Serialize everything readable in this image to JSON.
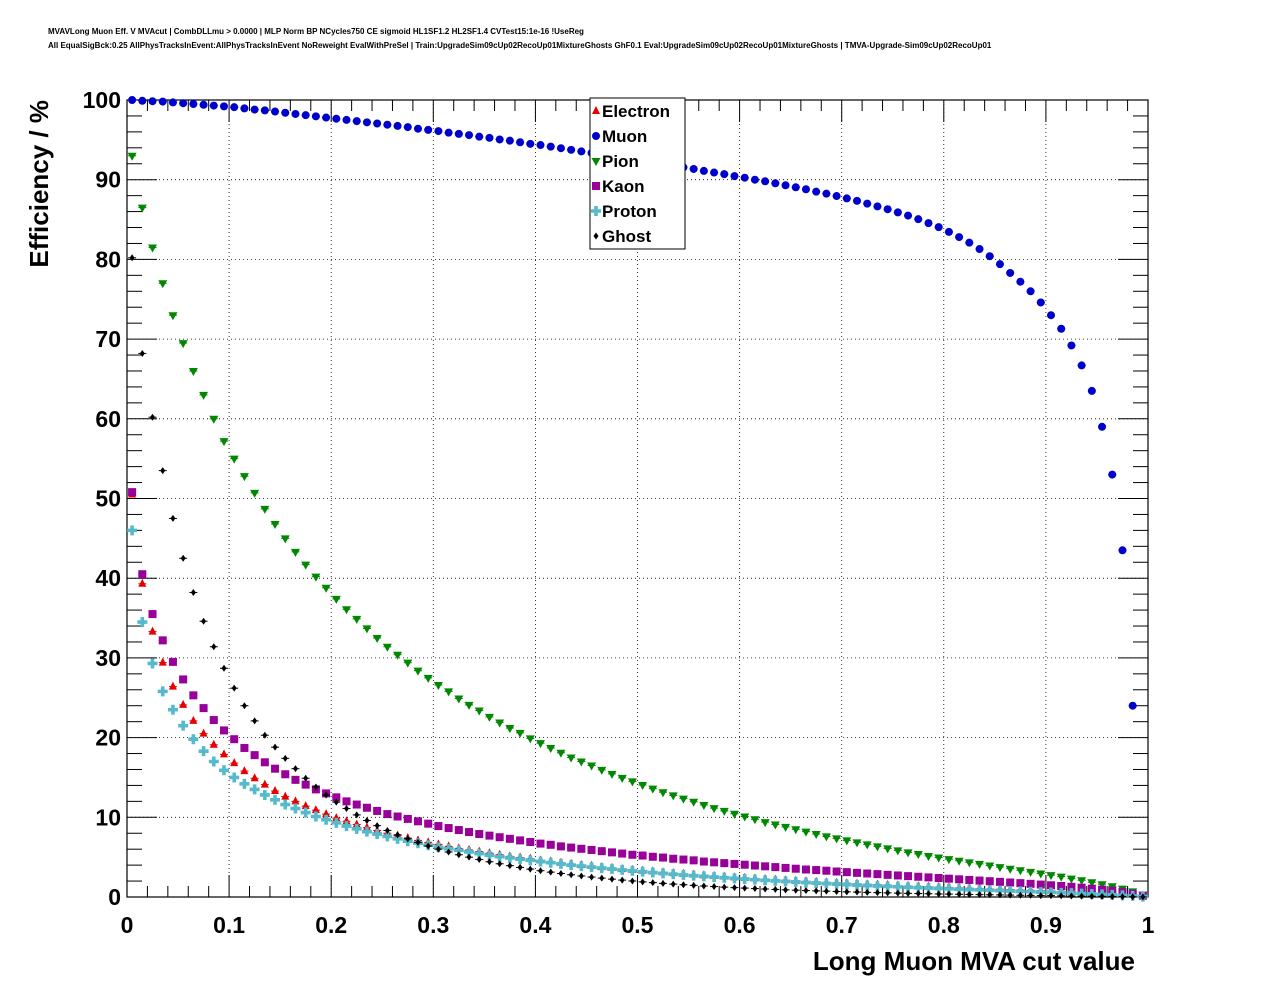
{
  "header": {
    "title_line1": "MVAVLong Muon Eff. V MVAcut | CombDLLmu > 0.0000 | MLP Norm BP NCycles750 CE sigmoid HL1SF1.2 HL2SF1.4 CVTest15:1e-16 !UseReg",
    "title_line2": "All EqualSigBck:0.25 AllPhysTracksInEvent:AllPhysTracksInEvent NoReweight EvalWithPreSel | Train:UpgradeSim09cUp02RecoUp01MixtureGhosts GhF0.1 Eval:UpgradeSim09cUp02RecoUp01MixtureGhosts | TMVA-Upgrade-Sim09cUp02RecoUp01"
  },
  "chart_data": {
    "type": "scatter",
    "xlabel": "Long Muon MVA cut value",
    "ylabel": "Efficiency / %",
    "xlim": [
      0,
      1
    ],
    "ylim": [
      0,
      100
    ],
    "x_ticks": [
      "0",
      "0.1",
      "0.2",
      "0.3",
      "0.4",
      "0.5",
      "0.6",
      "0.7",
      "0.8",
      "0.9",
      "1"
    ],
    "y_ticks": [
      "0",
      "10",
      "20",
      "30",
      "40",
      "50",
      "60",
      "70",
      "80",
      "90",
      "100"
    ],
    "grid": true,
    "legend_position": "top-center",
    "x_start": 0.005,
    "x_step": 0.01,
    "series": [
      {
        "name": "Electron",
        "color": "#e60000",
        "marker": "triangle-up",
        "values": [
          50.5,
          39.3,
          33.3,
          29.4,
          26.4,
          24.1,
          22.1,
          20.5,
          19.1,
          17.9,
          16.8,
          15.8,
          14.9,
          14.1,
          13.3,
          12.6,
          12.0,
          11.4,
          10.9,
          10.4,
          9.9,
          9.5,
          9.1,
          8.7,
          8.35,
          8.0,
          7.7,
          7.4,
          7.1,
          6.85,
          6.6,
          6.35,
          6.1,
          5.9,
          5.7,
          5.5,
          5.3,
          5.1,
          4.95,
          4.8,
          4.6,
          4.45,
          4.3,
          4.15,
          4.0,
          3.9,
          3.75,
          3.65,
          3.5,
          3.4,
          3.3,
          3.2,
          3.1,
          3.0,
          2.9,
          2.8,
          2.72,
          2.63,
          2.55,
          2.47,
          2.4,
          2.32,
          2.25,
          2.18,
          2.1,
          2.03,
          1.97,
          1.9,
          1.84,
          1.78,
          1.72,
          1.66,
          1.6,
          1.55,
          1.5,
          1.44,
          1.39,
          1.34,
          1.29,
          1.24,
          1.2,
          1.15,
          1.1,
          1.06,
          1.02,
          0.98,
          0.93,
          0.89,
          0.85,
          0.8,
          0.76,
          0.72,
          0.68,
          0.63,
          0.58,
          0.53,
          0.47,
          0.4,
          0.31,
          0.15
        ]
      },
      {
        "name": "Muon",
        "color": "#0000cc",
        "marker": "circle",
        "values": [
          100.0,
          99.9,
          99.85,
          99.8,
          99.7,
          99.6,
          99.5,
          99.4,
          99.3,
          99.2,
          99.1,
          98.95,
          98.8,
          98.7,
          98.55,
          98.4,
          98.25,
          98.1,
          97.95,
          97.8,
          97.65,
          97.5,
          97.35,
          97.2,
          97.05,
          96.9,
          96.75,
          96.6,
          96.4,
          96.25,
          96.1,
          95.9,
          95.75,
          95.6,
          95.4,
          95.25,
          95.05,
          94.9,
          94.7,
          94.5,
          94.35,
          94.15,
          93.95,
          93.75,
          93.55,
          93.35,
          93.15,
          92.95,
          92.75,
          92.55,
          92.35,
          92.15,
          91.95,
          91.75,
          91.55,
          91.35,
          91.1,
          90.9,
          90.7,
          90.45,
          90.25,
          90.0,
          89.8,
          89.55,
          89.3,
          89.05,
          88.8,
          88.5,
          88.25,
          87.95,
          87.65,
          87.35,
          87.0,
          86.65,
          86.3,
          85.9,
          85.5,
          85.05,
          84.55,
          84.05,
          83.45,
          82.8,
          82.1,
          81.3,
          80.4,
          79.4,
          78.3,
          77.2,
          76.0,
          74.6,
          73.0,
          71.3,
          69.2,
          66.7,
          63.5,
          59.0,
          53.0,
          43.5,
          24.0,
          0.2
        ]
      },
      {
        "name": "Pion",
        "color": "#008800",
        "marker": "triangle-down",
        "values": [
          93.0,
          86.5,
          81.5,
          77.0,
          73.0,
          69.5,
          66.0,
          63.0,
          60.0,
          57.2,
          55.0,
          52.8,
          50.7,
          48.7,
          46.8,
          45.0,
          43.3,
          41.7,
          40.2,
          38.8,
          37.4,
          36.1,
          34.9,
          33.7,
          32.5,
          31.4,
          30.4,
          29.4,
          28.4,
          27.5,
          26.6,
          25.8,
          24.9,
          24.1,
          23.4,
          22.6,
          21.9,
          21.2,
          20.6,
          19.9,
          19.3,
          18.7,
          18.1,
          17.5,
          17.0,
          16.5,
          15.95,
          15.45,
          14.95,
          14.5,
          14.05,
          13.6,
          13.15,
          12.75,
          12.35,
          11.95,
          11.55,
          11.15,
          10.8,
          10.45,
          10.1,
          9.75,
          9.4,
          9.1,
          8.8,
          8.5,
          8.2,
          7.9,
          7.6,
          7.35,
          7.1,
          6.85,
          6.6,
          6.35,
          6.1,
          5.85,
          5.6,
          5.4,
          5.15,
          4.95,
          4.75,
          4.55,
          4.35,
          4.15,
          3.95,
          3.75,
          3.55,
          3.35,
          3.15,
          2.95,
          2.75,
          2.55,
          2.3,
          2.1,
          1.85,
          1.6,
          1.35,
          1.05,
          0.7,
          0.3
        ]
      },
      {
        "name": "Kaon",
        "color": "#990099",
        "marker": "square",
        "values": [
          50.8,
          40.5,
          35.5,
          32.2,
          29.5,
          27.3,
          25.3,
          23.7,
          22.2,
          20.9,
          19.8,
          18.7,
          17.8,
          16.9,
          16.1,
          15.4,
          14.7,
          14.1,
          13.5,
          13.0,
          12.5,
          12.0,
          11.6,
          11.2,
          10.8,
          10.4,
          10.1,
          9.8,
          9.5,
          9.2,
          8.9,
          8.65,
          8.4,
          8.15,
          7.9,
          7.7,
          7.5,
          7.3,
          7.1,
          6.9,
          6.7,
          6.55,
          6.35,
          6.2,
          6.05,
          5.9,
          5.75,
          5.6,
          5.45,
          5.3,
          5.2,
          5.05,
          4.95,
          4.8,
          4.7,
          4.6,
          4.45,
          4.35,
          4.25,
          4.15,
          4.05,
          3.95,
          3.85,
          3.75,
          3.65,
          3.55,
          3.45,
          3.38,
          3.3,
          3.2,
          3.12,
          3.03,
          2.95,
          2.87,
          2.78,
          2.7,
          2.62,
          2.54,
          2.46,
          2.38,
          2.3,
          2.22,
          2.14,
          2.06,
          1.98,
          1.9,
          1.82,
          1.74,
          1.65,
          1.56,
          1.47,
          1.38,
          1.28,
          1.17,
          1.05,
          0.92,
          0.78,
          0.6,
          0.4,
          0.15
        ]
      },
      {
        "name": "Proton",
        "color": "#55bbcc",
        "marker": "cross",
        "values": [
          46.0,
          34.5,
          29.3,
          25.8,
          23.5,
          21.5,
          19.8,
          18.3,
          17.0,
          15.9,
          15.0,
          14.2,
          13.5,
          12.8,
          12.2,
          11.6,
          11.1,
          10.6,
          10.1,
          9.7,
          9.3,
          8.9,
          8.55,
          8.2,
          7.9,
          7.6,
          7.3,
          7.0,
          6.75,
          6.5,
          6.25,
          6.05,
          5.85,
          5.65,
          5.45,
          5.25,
          5.05,
          4.9,
          4.75,
          4.6,
          4.45,
          4.3,
          4.15,
          4.0,
          3.88,
          3.75,
          3.63,
          3.51,
          3.4,
          3.29,
          3.18,
          3.07,
          2.97,
          2.87,
          2.77,
          2.68,
          2.59,
          2.5,
          2.42,
          2.34,
          2.26,
          2.18,
          2.1,
          2.03,
          1.96,
          1.89,
          1.82,
          1.75,
          1.69,
          1.62,
          1.56,
          1.5,
          1.44,
          1.39,
          1.33,
          1.28,
          1.22,
          1.17,
          1.12,
          1.07,
          1.02,
          0.97,
          0.93,
          0.88,
          0.84,
          0.79,
          0.75,
          0.7,
          0.66,
          0.61,
          0.57,
          0.52,
          0.48,
          0.43,
          0.38,
          0.33,
          0.27,
          0.21,
          0.14,
          0.05
        ]
      },
      {
        "name": "Ghost",
        "color": "#000000",
        "marker": "diamond",
        "values": [
          80.2,
          68.2,
          60.2,
          53.5,
          47.5,
          42.5,
          38.2,
          34.6,
          31.4,
          28.7,
          26.2,
          24.0,
          22.1,
          20.3,
          18.8,
          17.4,
          16.1,
          14.9,
          13.8,
          12.8,
          11.9,
          11.1,
          10.3,
          9.6,
          8.95,
          8.35,
          7.8,
          7.3,
          6.85,
          6.4,
          6.0,
          5.65,
          5.3,
          5.0,
          4.7,
          4.42,
          4.17,
          3.93,
          3.71,
          3.5,
          3.3,
          3.12,
          2.95,
          2.79,
          2.64,
          2.5,
          2.37,
          2.24,
          2.12,
          2.01,
          1.9,
          1.8,
          1.71,
          1.62,
          1.54,
          1.46,
          1.38,
          1.31,
          1.24,
          1.18,
          1.12,
          1.06,
          1.0,
          0.95,
          0.9,
          0.85,
          0.81,
          0.77,
          0.73,
          0.69,
          0.65,
          0.62,
          0.58,
          0.55,
          0.52,
          0.49,
          0.46,
          0.44,
          0.41,
          0.38,
          0.36,
          0.34,
          0.32,
          0.3,
          0.28,
          0.26,
          0.24,
          0.22,
          0.2,
          0.18,
          0.17,
          0.15,
          0.13,
          0.11,
          0.1,
          0.08,
          0.06,
          0.05,
          0.03,
          0.01
        ]
      }
    ]
  }
}
